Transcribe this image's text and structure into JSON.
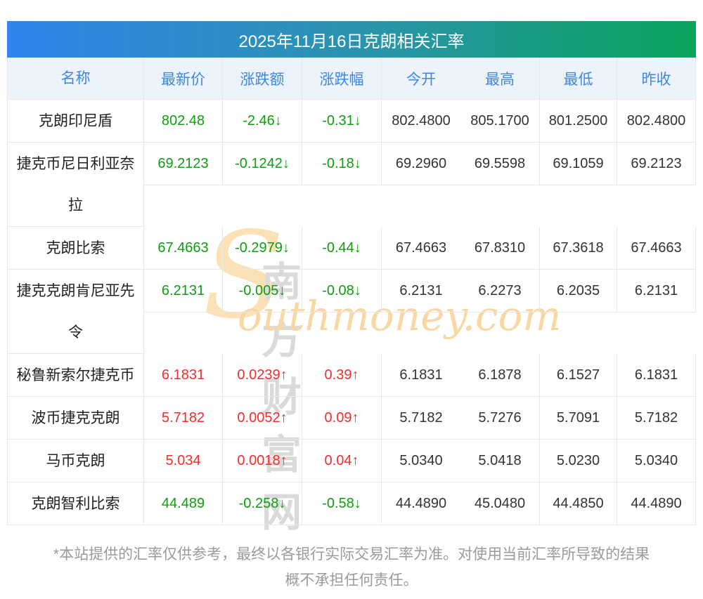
{
  "page": {
    "title": "2025年11月16日克朗相关汇率",
    "disclaimer_line1": "*本站提供的汇率仅供参考，最终以各银行实际交易汇率为准。对使用当前汇率所导致的结果",
    "disclaimer_line2": "概不承担任何责任。"
  },
  "watermark": {
    "initial": "S",
    "site_cn": "南方财富网",
    "site_en": "outhmoney.com"
  },
  "colors": {
    "title_gradient_start": "#3184ec",
    "title_gradient_end": "#09a45b",
    "header_bg": "#edf3fb",
    "header_text": "#3e87e4",
    "up_red": "#f92b2b",
    "down_green": "#0f9e0f",
    "border": "#e8e8e8",
    "footer_text": "#9b9b9b"
  },
  "table": {
    "headers": [
      "名称",
      "最新价",
      "涨跌额",
      "涨跌幅",
      "今开",
      "最高",
      "最低",
      "昨收"
    ],
    "rows": [
      {
        "name": "克朗印尼盾",
        "latest": "802.48",
        "change": "-2.46↓",
        "pct": "-0.31↓",
        "open": "802.4800",
        "high": "805.1700",
        "low": "801.2500",
        "prev": "802.4800",
        "trend": "down",
        "tall": false
      },
      {
        "name": "捷克币尼日利亚奈拉",
        "latest": "69.2123",
        "change": "-0.1242↓",
        "pct": "-0.18↓",
        "open": "69.2960",
        "high": "69.5598",
        "low": "69.1059",
        "prev": "69.2123",
        "trend": "down",
        "tall": true
      },
      {
        "name": "克朗比索",
        "latest": "67.4663",
        "change": "-0.2979↓",
        "pct": "-0.44↓",
        "open": "67.4663",
        "high": "67.8310",
        "low": "67.3618",
        "prev": "67.4663",
        "trend": "down",
        "tall": false
      },
      {
        "name": "捷克克朗肯尼亚先令",
        "latest": "6.2131",
        "change": "-0.005↓",
        "pct": "-0.08↓",
        "open": "6.2131",
        "high": "6.2273",
        "low": "6.2035",
        "prev": "6.2131",
        "trend": "down",
        "tall": true
      },
      {
        "name": "秘鲁新索尔捷克币",
        "latest": "6.1831",
        "change": "0.0239↑",
        "pct": "0.39↑",
        "open": "6.1831",
        "high": "6.1878",
        "low": "6.1527",
        "prev": "6.1831",
        "trend": "up",
        "tall": false
      },
      {
        "name": "波币捷克克朗",
        "latest": "5.7182",
        "change": "0.0052↑",
        "pct": "0.09↑",
        "open": "5.7182",
        "high": "5.7276",
        "low": "5.7091",
        "prev": "5.7182",
        "trend": "up",
        "tall": false
      },
      {
        "name": "马币克朗",
        "latest": "5.034",
        "change": "0.0018↑",
        "pct": "0.04↑",
        "open": "5.0340",
        "high": "5.0418",
        "low": "5.0230",
        "prev": "5.0340",
        "trend": "up",
        "tall": false
      },
      {
        "name": "克朗智利比索",
        "latest": "44.489",
        "change": "-0.258↓",
        "pct": "-0.58↓",
        "open": "44.4890",
        "high": "45.0480",
        "low": "44.4850",
        "prev": "44.4890",
        "trend": "down",
        "tall": false
      }
    ]
  }
}
